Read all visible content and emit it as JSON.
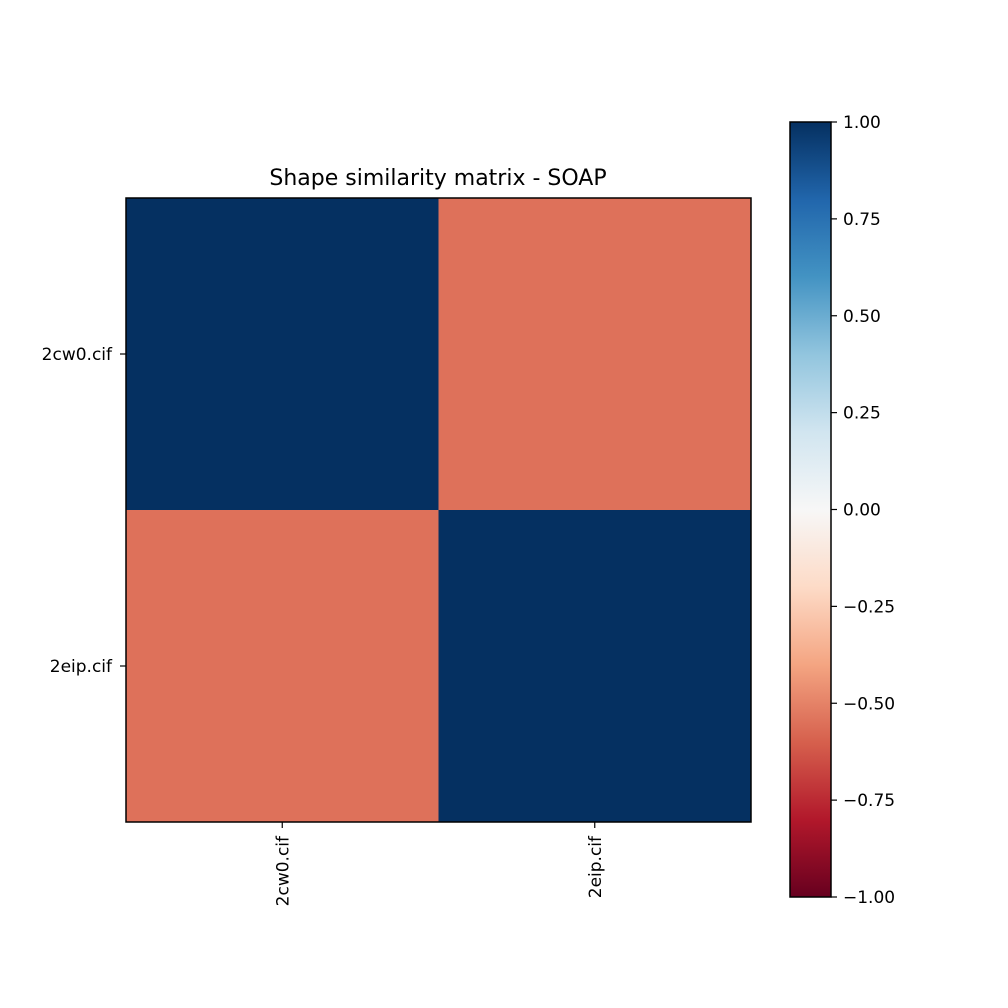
{
  "chart_data": {
    "type": "heatmap",
    "title": "Shape similarity matrix - SOAP",
    "xlabel": "",
    "ylabel": "",
    "rows": [
      "2cw0.cif",
      "2eip.cif"
    ],
    "columns": [
      "2cw0.cif",
      "2eip.cif"
    ],
    "values": [
      [
        1.0,
        -0.55
      ],
      [
        -0.55,
        1.0
      ]
    ],
    "colorscale": "RdBu",
    "vmin": -1.0,
    "vmax": 1.0,
    "colorbar": {
      "ticks": [
        1.0,
        0.75,
        0.5,
        0.25,
        0.0,
        -0.25,
        -0.5,
        -0.75,
        -1.0
      ],
      "tick_labels": [
        "1.00",
        "0.75",
        "0.50",
        "0.25",
        "0.00",
        "−0.25",
        "−0.50",
        "−0.75",
        "−1.00"
      ]
    },
    "grid": false
  }
}
